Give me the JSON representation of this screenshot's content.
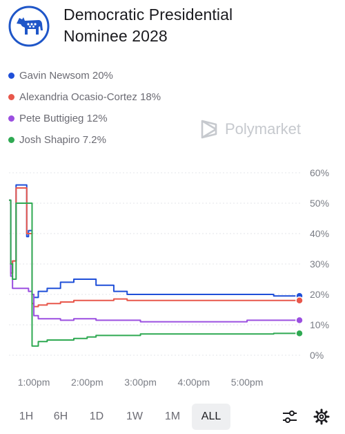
{
  "header": {
    "title_line1": "Democratic Presidential",
    "title_line2": "Nominee 2028",
    "logo_icon": "democratic-donkey-icon"
  },
  "legend": [
    {
      "label": "Gavin Newsom 20%",
      "color": "#1f4fd8"
    },
    {
      "label": "Alexandria Ocasio-Cortez 18%",
      "color": "#e8574b"
    },
    {
      "label": "Pete Buttigieg 12%",
      "color": "#9b4fe0"
    },
    {
      "label": "Josh Shapiro 7.2%",
      "color": "#2fa952"
    }
  ],
  "watermark": {
    "text": "Polymarket",
    "icon": "polymarket-logo-icon"
  },
  "chart_data": {
    "type": "line",
    "title": "",
    "xlabel": "",
    "ylabel": "",
    "x_ticks": [
      "1:00pm",
      "2:00pm",
      "3:00pm",
      "4:00pm",
      "5:00pm"
    ],
    "y_ticks": [
      "60%",
      "50%",
      "40%",
      "30%",
      "20%",
      "10%",
      "0%"
    ],
    "ylim": [
      0,
      60
    ],
    "xlim": [
      "12:32pm",
      "5:59pm"
    ],
    "grid": true,
    "x": [
      "12:32pm",
      "12:34pm",
      "12:36pm",
      "12:40pm",
      "12:45pm",
      "12:52pm",
      "12:54pm",
      "12:58pm",
      "1:00pm",
      "1:05pm",
      "1:15pm",
      "1:30pm",
      "1:45pm",
      "2:00pm",
      "2:10pm",
      "2:30pm",
      "2:45pm",
      "3:00pm",
      "3:30pm",
      "4:00pm",
      "4:30pm",
      "5:00pm",
      "5:30pm",
      "5:59pm"
    ],
    "series": [
      {
        "name": "Gavin Newsom",
        "color": "#1f4fd8",
        "values": [
          51,
          27,
          31,
          56,
          56,
          39,
          41,
          20,
          19,
          21,
          22,
          24,
          25,
          25,
          23,
          21,
          20,
          20,
          20,
          20,
          20,
          20,
          19.5,
          19.5
        ]
      },
      {
        "name": "Alexandria Ocasio-Cortez",
        "color": "#e8574b",
        "values": [
          51,
          27,
          31,
          55,
          55,
          40,
          40,
          17,
          16,
          16.5,
          17,
          17.5,
          18,
          18,
          18,
          18.5,
          18,
          18,
          18,
          18,
          18,
          18,
          18,
          18
        ]
      },
      {
        "name": "Pete Buttigieg",
        "color": "#9b4fe0",
        "values": [
          51,
          26,
          22,
          22,
          22,
          22,
          21,
          20,
          13,
          12,
          12,
          11.5,
          12,
          12,
          11.5,
          11.5,
          11.5,
          11,
          11,
          11,
          11,
          11.5,
          11.5,
          11.5
        ]
      },
      {
        "name": "Josh Shapiro",
        "color": "#2fa952",
        "values": [
          51,
          30,
          25,
          50,
          50,
          50,
          50,
          3,
          3,
          4.5,
          5,
          5,
          5.5,
          6,
          6.5,
          6.5,
          6.5,
          7,
          7,
          7,
          7,
          7,
          7.2,
          7.2
        ]
      }
    ]
  },
  "range": {
    "buttons": [
      "1H",
      "6H",
      "1D",
      "1W",
      "1M",
      "ALL"
    ],
    "active": "ALL"
  },
  "controls": {
    "filter_icon": "sliders-icon",
    "settings_icon": "gear-icon"
  }
}
